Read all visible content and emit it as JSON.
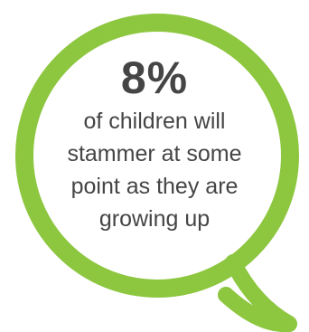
{
  "bubble": {
    "color": "#8dc63f"
  },
  "stat": {
    "value": "8%",
    "lines": [
      "of children will",
      "stammer at some",
      "point as they are",
      "growing up"
    ]
  }
}
